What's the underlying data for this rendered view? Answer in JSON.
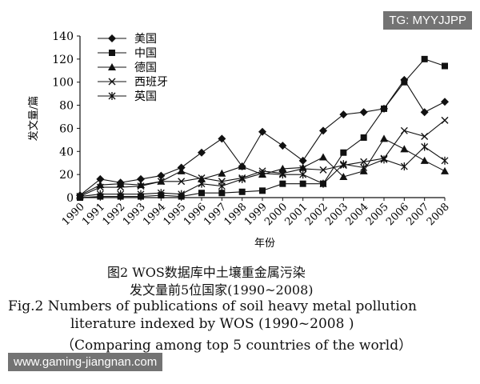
{
  "watermark_top": "TG: MYYJJPP",
  "watermark_bottom": "www.gaming-jiangnan.com",
  "caption": {
    "cn_line1": "图2 WOS数据库中土壤重金属污染",
    "cn_line2": "发文量前5位国家(1990~2008)",
    "en_line1": "Fig.2  Numbers of publications of soil heavy metal pollution",
    "en_line2": "literature indexed by WOS (1990~2008 )",
    "en_line3": "（Comparing among top 5 countries of the world）"
  },
  "chart_data": {
    "type": "line",
    "title": "",
    "xlabel": "年份",
    "ylabel": "发文量/篇",
    "x": [
      "1990",
      "1991",
      "1992",
      "1993",
      "1994",
      "1995",
      "1996",
      "1997",
      "1998",
      "1999",
      "2000",
      "2001",
      "2002",
      "2003",
      "2004",
      "2005",
      "2006",
      "2007",
      "2008"
    ],
    "ylim": [
      0,
      140
    ],
    "yticks": [
      0,
      20,
      40,
      60,
      80,
      100,
      120,
      140
    ],
    "grid": false,
    "legend_position": "top-left",
    "series": [
      {
        "name": "美国",
        "marker": "diamond",
        "values": [
          2,
          16,
          13,
          16,
          19,
          26,
          39,
          51,
          27,
          57,
          45,
          32,
          58,
          72,
          74,
          77,
          102,
          74,
          83
        ]
      },
      {
        "name": "中国",
        "marker": "square",
        "values": [
          0,
          1,
          1,
          1,
          2,
          1,
          4,
          4,
          5,
          6,
          12,
          12,
          12,
          39,
          52,
          77,
          100,
          120,
          114
        ]
      },
      {
        "name": "德国",
        "marker": "triangle",
        "values": [
          2,
          11,
          12,
          11,
          14,
          23,
          16,
          21,
          27,
          20,
          25,
          26,
          35,
          18,
          23,
          51,
          42,
          32,
          23
        ]
      },
      {
        "name": "西班牙",
        "marker": "x",
        "values": [
          1,
          9,
          9,
          10,
          14,
          14,
          17,
          14,
          17,
          23,
          21,
          25,
          24,
          28,
          31,
          34,
          58,
          53,
          67
        ]
      },
      {
        "name": "英国",
        "marker": "star",
        "values": [
          1,
          3,
          3,
          3,
          4,
          3,
          12,
          10,
          16,
          21,
          20,
          20,
          12,
          29,
          26,
          33,
          27,
          44,
          32
        ]
      }
    ]
  }
}
